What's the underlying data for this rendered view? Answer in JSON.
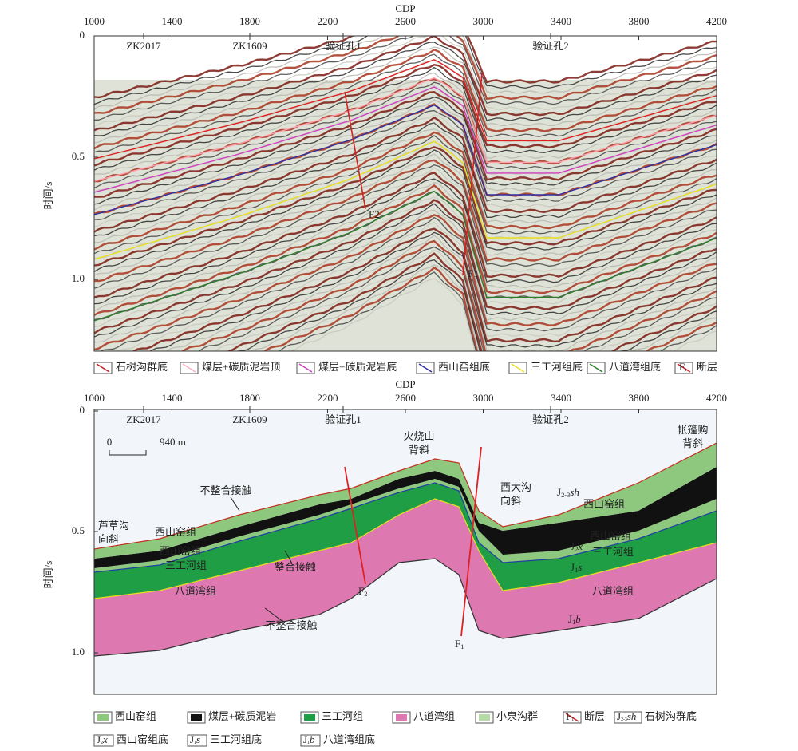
{
  "figure": {
    "top_panel": {
      "x_axis_title": "CDP",
      "x_ticks": [
        "1000",
        "1400",
        "1800",
        "2200",
        "2600",
        "3000",
        "3400",
        "3800",
        "4200"
      ],
      "y_axis_title": "时间/s",
      "y_ticks": [
        "0",
        "0.5",
        "1.0"
      ],
      "wells": [
        "ZK2017",
        "ZK1609",
        "验证孔1",
        "验证孔2"
      ],
      "faults": [
        "F2",
        "F1"
      ]
    },
    "top_legend": [
      {
        "label": "石树沟群底"
      },
      {
        "label": "煤层+碳质泥岩顶"
      },
      {
        "label": "煤层+碳质泥岩底"
      },
      {
        "label": "西山窑组底"
      },
      {
        "label": "三工河组底"
      },
      {
        "label": "八道湾组底"
      },
      {
        "swatch": {
          "letter": "F",
          "sub": "1"
        },
        "label": "断层"
      }
    ],
    "bottom_panel": {
      "x_axis_title": "CDP",
      "x_ticks": [
        "1000",
        "1400",
        "1800",
        "2200",
        "2600",
        "3000",
        "3400",
        "3800",
        "4200"
      ],
      "y_axis_title": "时间/s",
      "y_ticks": [
        "0",
        "0.5",
        "1.0"
      ],
      "wells": [
        "ZK2017",
        "ZK1609",
        "验证孔1",
        "验证孔2"
      ],
      "scale_bar": {
        "start": "0",
        "end": "940 m"
      },
      "structures": [
        [
          "火烧山",
          "背斜"
        ],
        [
          "帐篷购",
          "背斜"
        ],
        [
          "芦草沟",
          "向斜"
        ],
        [
          "西大沟",
          "向斜"
        ]
      ],
      "contacts": [
        "不整合接触",
        "整合接触",
        "不整合接触"
      ],
      "formations": [
        "西山窑组",
        "西山窑组",
        "三工河组",
        "八道湾组",
        "西山窑组",
        "西山窑组",
        "三工河组",
        "八道湾组"
      ],
      "formulas": [
        {
          "base": "J",
          "sub": "2-3",
          "italic": "sh"
        },
        {
          "base": "J",
          "sub": "2",
          "italic": "x"
        },
        {
          "base": "J",
          "sub": "1",
          "italic": "s"
        },
        {
          "base": "J",
          "sub": "1",
          "italic": "b"
        }
      ],
      "faults": [
        {
          "letter": "F",
          "sub": "2"
        },
        {
          "letter": "F",
          "sub": "1"
        }
      ]
    },
    "bottom_legend": [
      {
        "label": "西山窑组"
      },
      {
        "label": "煤层+碳质泥岩"
      },
      {
        "label": "三工河组"
      },
      {
        "label": "八道湾组"
      },
      {
        "label": "小泉沟群"
      },
      {
        "swatch": {
          "letter": "F",
          "sub": "1"
        },
        "label": "断层"
      },
      {
        "swatch": {
          "base": "J",
          "sub": "2-3",
          "italic": "sh"
        },
        "label": "石树沟群底"
      },
      {
        "swatch": {
          "base": "J",
          "sub": "2",
          "italic": "x"
        },
        "label": "西山窑组底"
      },
      {
        "swatch": {
          "base": "J",
          "sub": "1",
          "italic": "s"
        },
        "label": "三工河组底"
      },
      {
        "swatch": {
          "base": "J",
          "sub": "1",
          "italic": "b"
        },
        "label": "八道湾组底"
      }
    ]
  }
}
